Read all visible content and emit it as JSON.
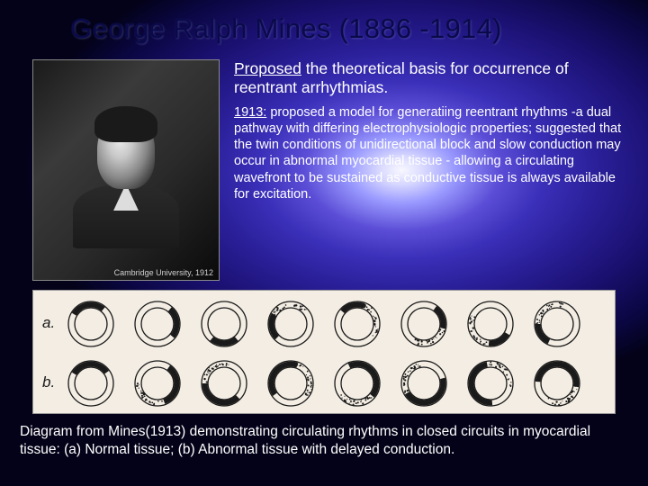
{
  "title": "George Ralph Mines (1886 -1914)",
  "photo": {
    "caption": "Cambridge University, 1912"
  },
  "subtitle": {
    "underlined": "Proposed",
    "rest": " the theoretical basis for occurrence of reentrant arrhythmias."
  },
  "body": {
    "underlined": "1913:",
    "rest": " proposed a model for generatiing reentrant rhythms -a dual pathway with differing electrophysiologic properties; suggested that the twin conditions of unidirectional block and slow conduction may occur in abnormal myocardial tissue - allowing a circulating wavefront to be sustained as conductive tissue is always available for excitation."
  },
  "diagram": {
    "background_color": "#f3ede3",
    "ring_outer_stroke": "#1a1a1a",
    "ring_inner_stroke": "#1a1a1a",
    "label_a": "a.",
    "label_b": "b.",
    "rows": {
      "a": [
        {
          "arc_start": 300,
          "arc_len": 100,
          "fill": "#1a1a1a",
          "speckle": false
        },
        {
          "arc_start": 40,
          "arc_len": 90,
          "fill": "#1a1a1a",
          "speckle": false
        },
        {
          "arc_start": 140,
          "arc_len": 80,
          "fill": "#1a1a1a",
          "speckle": false
        },
        {
          "arc_start": 225,
          "arc_len": 75,
          "fill": "#1a1a1a",
          "speckle": true
        },
        {
          "arc_start": 310,
          "arc_len": 70,
          "fill": "#1a1a1a",
          "speckle": true
        },
        {
          "arc_start": 35,
          "arc_len": 68,
          "fill": "#1a1a1a",
          "speckle": true
        },
        {
          "arc_start": 120,
          "arc_len": 65,
          "fill": "#1a1a1a",
          "speckle": true
        },
        {
          "arc_start": 205,
          "arc_len": 65,
          "fill": "#1a1a1a",
          "speckle": true
        }
      ],
      "b": [
        {
          "arc_start": 300,
          "arc_len": 115,
          "fill": "#1a1a1a",
          "speckle": false
        },
        {
          "arc_start": 35,
          "arc_len": 125,
          "fill": "#1a1a1a",
          "speckle": true
        },
        {
          "arc_start": 135,
          "arc_len": 135,
          "fill": "#1a1a1a",
          "speckle": true
        },
        {
          "arc_start": 235,
          "arc_len": 145,
          "fill": "#1a1a1a",
          "speckle": true
        },
        {
          "arc_start": 335,
          "arc_len": 155,
          "fill": "#1a1a1a",
          "speckle": true
        },
        {
          "arc_start": 75,
          "arc_len": 165,
          "fill": "#1a1a1a",
          "speckle": true
        },
        {
          "arc_start": 175,
          "arc_len": 175,
          "fill": "#1a1a1a",
          "speckle": true
        },
        {
          "arc_start": 275,
          "arc_len": 185,
          "fill": "#1a1a1a",
          "speckle": true
        }
      ]
    }
  },
  "diagram_caption": "Diagram from Mines(1913) demonstrating circulating rhythms in closed circuits in myocardial tissue: (a) Normal tissue; (b) Abnormal tissue with delayed conduction."
}
